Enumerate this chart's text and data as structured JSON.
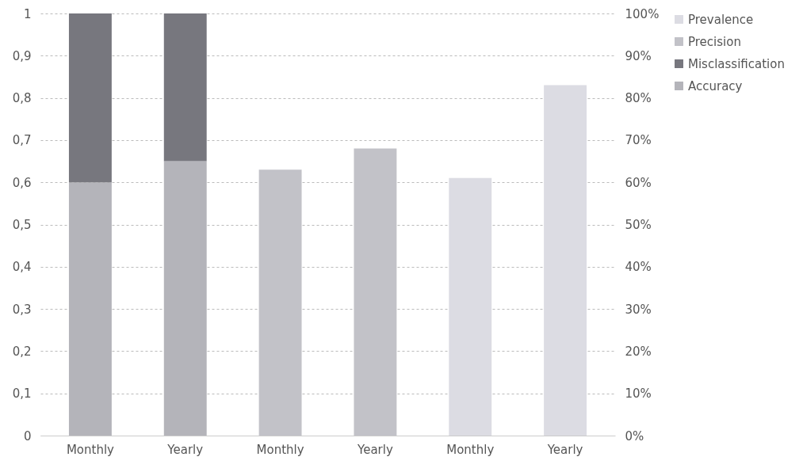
{
  "chart_data": {
    "type": "bar",
    "stacked": true,
    "categories": [
      "Monthly",
      "Yearly",
      "Monthly",
      "Yearly",
      "Monthly",
      "Yearly"
    ],
    "series": [
      {
        "name": "Accuracy",
        "color": "#b4b4ba",
        "values": [
          0.6,
          0.65,
          null,
          null,
          null,
          null
        ]
      },
      {
        "name": "Misclassification",
        "color": "#77777e",
        "values": [
          0.4,
          0.35,
          null,
          null,
          null,
          null
        ]
      },
      {
        "name": "Precision",
        "color": "#c2c2c8",
        "axis": "y2",
        "values": [
          null,
          null,
          63,
          68,
          null,
          null
        ]
      },
      {
        "name": "Prevalence",
        "color": "#dcdce3",
        "axis": "y2",
        "values": [
          null,
          null,
          null,
          null,
          61,
          83
        ]
      }
    ],
    "ylim": [
      0,
      1
    ],
    "yticks": [
      0,
      {
        "value": 0.1,
        "label": "0,1"
      },
      {
        "value": 0.2,
        "label": "0,2"
      },
      {
        "value": 0.3,
        "label": "0,3"
      },
      {
        "value": 0.4,
        "label": "0,4"
      },
      {
        "value": 0.5,
        "label": "0,5"
      },
      {
        "value": 0.6,
        "label": "0,6"
      },
      {
        "value": 0.7,
        "label": "0,7"
      },
      {
        "value": 0.8,
        "label": "0,8"
      },
      {
        "value": 0.9,
        "label": "0,9"
      },
      1
    ],
    "y2lim": [
      0,
      100
    ],
    "y2ticks": [
      {
        "value": 0,
        "label": "0%"
      },
      {
        "value": 10,
        "label": "10%"
      },
      {
        "value": 20,
        "label": "20%"
      },
      {
        "value": 30,
        "label": "30%"
      },
      {
        "value": 40,
        "label": "40%"
      },
      {
        "value": 50,
        "label": "50%"
      },
      {
        "value": 60,
        "label": "60%"
      },
      {
        "value": 70,
        "label": "70%"
      },
      {
        "value": 80,
        "label": "80%"
      },
      {
        "value": 90,
        "label": "90%"
      },
      {
        "value": 100,
        "label": "100%"
      }
    ],
    "grid": "y",
    "legend": "right"
  }
}
